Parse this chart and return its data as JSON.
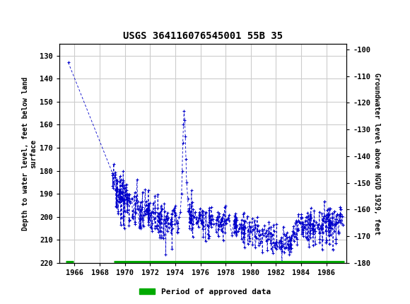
{
  "title": "USGS 364116076545001 55B 35",
  "ylabel_left": "Depth to water level, feet below land\nsurface",
  "ylabel_right": "Groundwater level above NGVD 1929, feet",
  "ylim_left": [
    220,
    125
  ],
  "ylim_right": [
    -180,
    -98
  ],
  "yticks_left": [
    130,
    140,
    150,
    160,
    170,
    180,
    190,
    200,
    210,
    220
  ],
  "yticks_right": [
    -100,
    -110,
    -120,
    -130,
    -140,
    -150,
    -160,
    -170,
    -180
  ],
  "xlim": [
    1964.8,
    1987.6
  ],
  "xticks": [
    1966,
    1968,
    1970,
    1972,
    1974,
    1976,
    1978,
    1980,
    1982,
    1984,
    1986
  ],
  "header_color": "#1A6B3C",
  "data_color": "#0000CC",
  "approved_color": "#00AA00",
  "background_plot": "#FFFFFF",
  "grid_color": "#CCCCCC",
  "legend_label": "Period of approved data",
  "approved_bar_y": 220,
  "approved_bar1_xstart": 1965.3,
  "approved_bar1_xend": 1965.9,
  "approved_bar2_xstart": 1969.1,
  "approved_bar2_xend": 1987.4
}
